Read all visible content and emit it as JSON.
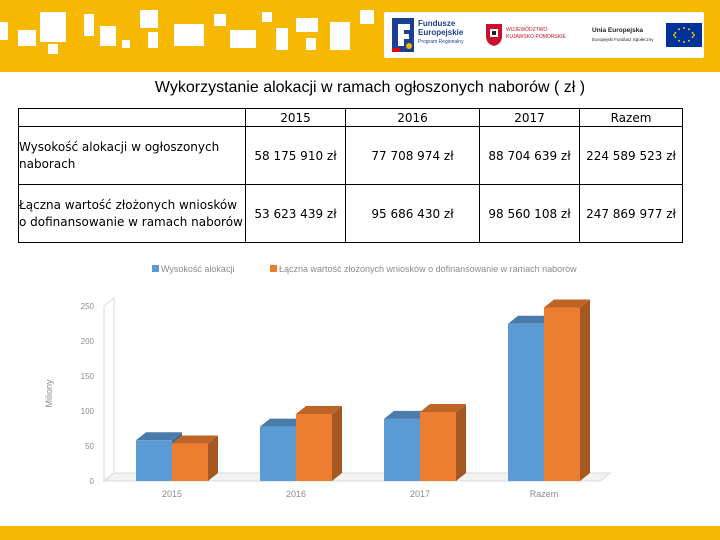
{
  "logos": {
    "fe_line1": "Fundusze",
    "fe_line2": "Europejskie",
    "fe_line3": "Program Regionalny",
    "region_line1": "WOJEWÓDZTWO",
    "region_line2": "KUJAWSKO-POMORSKIE",
    "eu_line1": "Unia Europejska",
    "eu_line2": "Europejski Fundusz Społeczny"
  },
  "title": "Wykorzystanie alokacji  w ramach ogłoszonych naborów ( zł )",
  "table": {
    "headers": [
      "2015",
      "2016",
      "2017",
      "Razem"
    ],
    "rows": [
      {
        "label": "Wysokość alokacji w ogłoszonych naborach",
        "values": [
          "58 175 910 zł",
          "77 708 974 zł",
          "88 704 639 zł",
          "224 589 523 zł"
        ]
      },
      {
        "label": "Łączna wartość złożonych wniosków o  dofinansowanie w ramach naborów",
        "values": [
          "53 623 439 zł",
          "95 686 430  zł",
          "98 560 108 zł",
          "247 869 977 zł"
        ]
      }
    ]
  },
  "colors": {
    "header_yellow": "#f6b800",
    "series_blue": "#5b9bd5",
    "series_orange": "#ed7d31",
    "axis_text": "#8c8c8c"
  },
  "chart_data": {
    "type": "bar",
    "categories": [
      "2015",
      "2016",
      "2017",
      "Razem"
    ],
    "series": [
      {
        "name": "Wysokość alokacji",
        "values": [
          58.18,
          77.71,
          88.7,
          224.59
        ]
      },
      {
        "name": "Łączna wartość złożonych wniosków o  dofinansowanie  w ramach naborów",
        "values": [
          53.62,
          95.69,
          98.56,
          247.87
        ]
      }
    ],
    "ylabel": "Miliony",
    "ylim": [
      0,
      250
    ],
    "yticks": [
      "0",
      "50",
      "100",
      "150",
      "200",
      "250"
    ],
    "legend": "top",
    "style": "3d-columns"
  }
}
